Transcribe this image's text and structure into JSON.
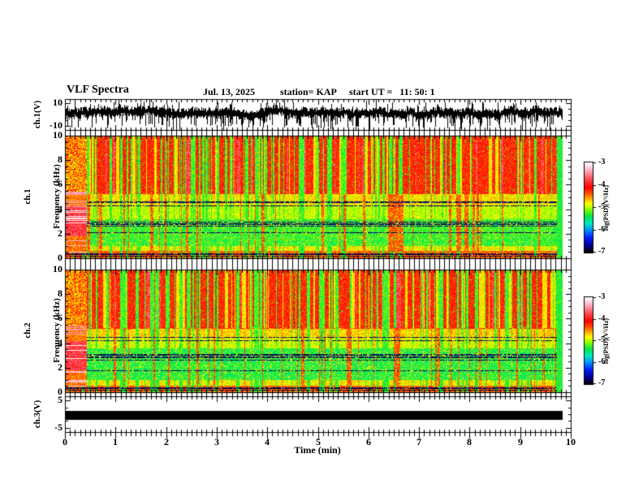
{
  "header": {
    "title": "VLF Spectra",
    "date": "Jul. 13, 2025",
    "station": "station= KAP",
    "start_ut": "start UT =   11: 50: 1"
  },
  "x_axis": {
    "label": "Time (min)",
    "ticks": [
      0,
      1,
      2,
      3,
      4,
      5,
      6,
      7,
      8,
      9,
      10
    ],
    "minor_tick_step": 0.1,
    "range": [
      0,
      10
    ],
    "data_end_min": 9.82
  },
  "colorbar": {
    "label": "log(PSD)(V²/Hz)",
    "ticks": [
      -3,
      -4,
      -5,
      -6,
      -7
    ],
    "range_top_bottom": [
      -3,
      -7
    ],
    "stops": [
      [
        -3.0,
        255,
        255,
        255
      ],
      [
        -3.35,
        255,
        175,
        190
      ],
      [
        -3.75,
        255,
        70,
        80
      ],
      [
        -4.1,
        255,
        0,
        0
      ],
      [
        -4.4,
        255,
        90,
        0
      ],
      [
        -4.65,
        255,
        190,
        0
      ],
      [
        -4.85,
        255,
        255,
        0
      ],
      [
        -5.1,
        130,
        255,
        0
      ],
      [
        -5.4,
        0,
        230,
        70
      ],
      [
        -5.7,
        0,
        235,
        190
      ],
      [
        -6.0,
        0,
        150,
        255
      ],
      [
        -6.35,
        0,
        30,
        255
      ],
      [
        -6.7,
        0,
        0,
        150
      ],
      [
        -7.0,
        0,
        0,
        0
      ]
    ]
  },
  "chart_data": [
    {
      "type": "line",
      "name": "ch1-waveform",
      "ylabel": "ch.1(V)",
      "yticks": [
        10,
        -10
      ],
      "yticks_minor": [
        5,
        0,
        -5
      ],
      "ylim": [
        -13.5,
        13.5
      ],
      "seed": 3,
      "description": "dense broadband noise waveform, mean ~ +1.5 V, envelope ±6 V with frequent negative spikes to -12 V, from 0 to 9.82 min"
    },
    {
      "type": "heatmap",
      "name": "ch1-spectrogram",
      "ylabel_line1": "ch.1",
      "ylabel_line2": "Frequency (kHz)",
      "yticks": [
        10,
        8,
        6,
        4,
        2,
        0
      ],
      "ylim": [
        0,
        10
      ],
      "value_range": [
        -7,
        -3
      ],
      "seed": 11,
      "bands": [
        {
          "f": [
            5.25,
            10.01
          ],
          "base": -3.95,
          "spread": 0.5
        },
        {
          "f": [
            4.3,
            5.25
          ],
          "base": -4.5,
          "spread": 0.55
        },
        {
          "f": [
            3.2,
            4.3
          ],
          "base": -4.75,
          "spread": 0.5
        },
        {
          "f": [
            1.0,
            3.2
          ],
          "base": -5.1,
          "spread": 0.45
        },
        {
          "f": [
            0.55,
            1.0
          ],
          "base": -4.55,
          "spread": 0.55
        },
        {
          "f": [
            0.0,
            0.55
          ],
          "base": -4.15,
          "spread": 0.5
        }
      ],
      "features": {
        "left_bright_block_min": 0.42,
        "right_green_strip_min": 0.12,
        "dark_lines_khz": [
          4.6,
          4.3,
          2.95,
          2.78,
          2.6,
          2.1
        ],
        "bottom_dark_rows_khz": [
          [
            0.08,
            0.16
          ],
          [
            0.26,
            0.34
          ]
        ]
      },
      "description": "red (~-4) above 5 kHz with vertical green dropout streaks, yellow-green 3-5 kHz, green (~-5.2) 1-3 kHz, bright pink/white block in first 0.4 min below 5.5 kHz, dark horizontal interference lines, green strip at 9.7-9.82 min"
    },
    {
      "type": "heatmap",
      "name": "ch2-spectrogram",
      "ylabel_line1": "ch.2",
      "ylabel_line2": "Frequency (kHz)",
      "yticks": [
        10,
        8,
        6,
        4,
        2,
        0
      ],
      "ylim": [
        0,
        10
      ],
      "value_range": [
        -7,
        -3
      ],
      "seed": 29,
      "bands": [
        {
          "f": [
            5.2,
            10.01
          ],
          "base": -3.95,
          "spread": 0.5
        },
        {
          "f": [
            4.4,
            5.2
          ],
          "base": -4.45,
          "spread": 0.55
        },
        {
          "f": [
            3.6,
            4.4
          ],
          "base": -4.7,
          "spread": 0.5
        },
        {
          "f": [
            1.0,
            3.6
          ],
          "base": -5.15,
          "spread": 0.45
        },
        {
          "f": [
            0.5,
            1.0
          ],
          "base": -4.55,
          "spread": 0.55
        },
        {
          "f": [
            0.0,
            0.5
          ],
          "base": -4.15,
          "spread": 0.5
        }
      ],
      "features": {
        "left_bright_block_min": 0.42,
        "right_green_strip_min": 0.12,
        "dark_lines_khz": [
          4.5,
          4.25,
          3.05,
          2.85,
          2.6,
          1.75
        ],
        "bottom_dark_rows_khz": [
          [
            0.08,
            0.16
          ],
          [
            0.26,
            0.34
          ]
        ]
      },
      "description": "same structure as ch.1 spectrogram: red above ~5 kHz, green 1-3.6 kHz, bright pink block at start, dark horizontal lines, terminal green strip"
    },
    {
      "type": "line",
      "name": "ch3-waveform",
      "ylabel": "ch.3(V)",
      "yticks": [
        5,
        -5
      ],
      "yticks_minor": [
        2.5,
        0,
        -2.5
      ],
      "ylim": [
        -6.5,
        6.5
      ],
      "bar_level_v": [
        -2.0,
        0.9
      ],
      "description": "flat saturated black trace (thick bar between +0.9 and -2.0 V) from 0 to 9.82 min"
    }
  ]
}
